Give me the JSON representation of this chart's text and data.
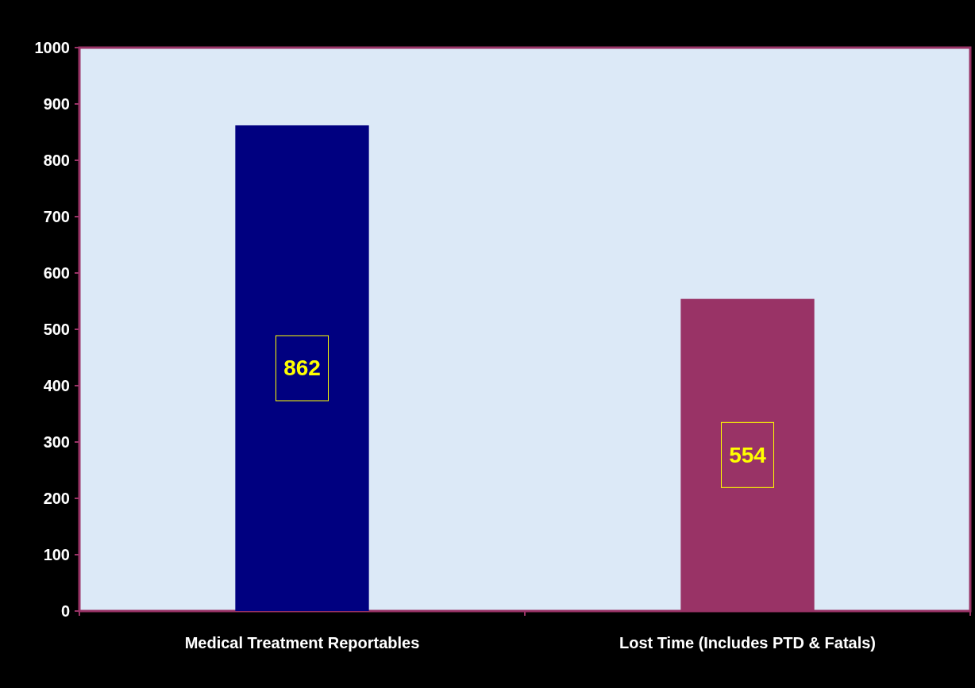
{
  "chart_data": {
    "type": "bar",
    "categories": [
      "Medical Treatment Reportables",
      "Lost Time (Includes PTD & Fatals)"
    ],
    "values": [
      862,
      554
    ],
    "colors": [
      "#000080",
      "#993366"
    ],
    "ylim": [
      0,
      1000
    ],
    "yticks": [
      0,
      100,
      200,
      300,
      400,
      500,
      600,
      700,
      800,
      900,
      1000
    ],
    "data_labels": true,
    "grid": false
  }
}
